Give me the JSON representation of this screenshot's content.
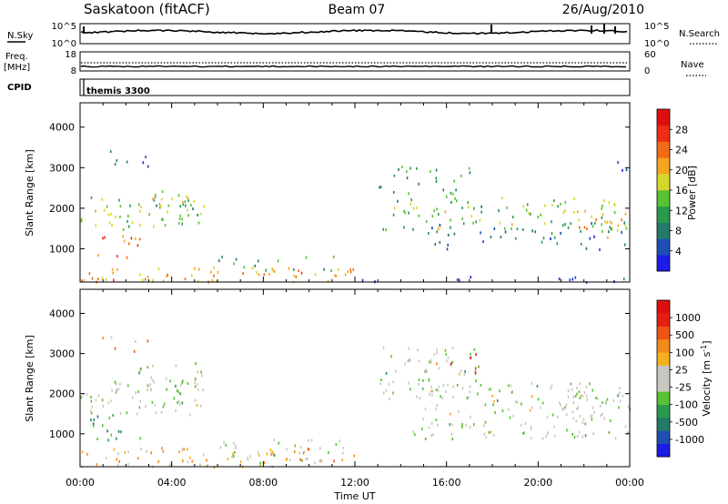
{
  "header": {
    "station": "Saskatoon (fitACF)",
    "beam": "Beam 07",
    "date": "26/Aug/2010"
  },
  "top_panels": {
    "nsky": {
      "left_label": "N.Sky",
      "right_label": "N.Search",
      "left_ticks": [
        "10^5",
        "10^0"
      ],
      "right_ticks": [
        "10^5",
        "10^0"
      ],
      "right_legend_style": "dotted"
    },
    "freq": {
      "left_label_line1": "Freq.",
      "left_label_line2": "[MHz]",
      "right_label": "Nave",
      "left_ticks": [
        "18",
        "8"
      ],
      "right_ticks": [
        "60",
        "0"
      ],
      "right_legend_style": "dotted"
    },
    "cpid": {
      "label": "CPID",
      "program": "themis 3300"
    }
  },
  "colors": {
    "power_scale": [
      "#1c1ce6",
      "#1e4fb4",
      "#237a6a",
      "#2a9a4e",
      "#57c233",
      "#d6d62a",
      "#f5a41e",
      "#f26a16",
      "#ee2d14",
      "#e00f0f"
    ],
    "velocity_scale": [
      "#1c1ce6",
      "#1e4fb4",
      "#237a6a",
      "#2a9a4e",
      "#57c233",
      "#c8c8c0",
      "#c8c8c0",
      "#f5b01e",
      "#f28a18",
      "#ee5514",
      "#e41f10",
      "#e00f0f"
    ]
  },
  "chart_data": [
    {
      "type": "heatmap",
      "quantity": "Power",
      "ylabel": "Slant Range [km]",
      "xlabel": "",
      "ylim": [
        180,
        4600
      ],
      "yticks": [
        1000,
        2000,
        3000,
        4000
      ],
      "xlim_hours": [
        0,
        24
      ],
      "colorbar_label": "Power [dB]",
      "colorbar_ticks": [
        "4",
        "8",
        "12",
        "16",
        "20",
        "24",
        "28"
      ],
      "scatter_regions": [
        {
          "t": [
            0.0,
            5.4
          ],
          "r": [
            1500,
            2350
          ],
          "level": 4,
          "density": 0.55
        },
        {
          "t": [
            2.5,
            5.5
          ],
          "r": [
            2100,
            2450
          ],
          "level": 5,
          "density": 0.5
        },
        {
          "t": [
            0.6,
            3.0
          ],
          "r": [
            3050,
            3450
          ],
          "level": 1,
          "density": 0.35
        },
        {
          "t": [
            0.3,
            2.6
          ],
          "r": [
            800,
            1400
          ],
          "level": 7,
          "density": 0.4
        },
        {
          "t": [
            0.0,
            12.0
          ],
          "r": [
            200,
            600
          ],
          "level": 6,
          "density": 0.55
        },
        {
          "t": [
            6.0,
            11.5
          ],
          "r": [
            400,
            850
          ],
          "level": 3,
          "density": 0.25
        },
        {
          "t": [
            12.0,
            24.0
          ],
          "r": [
            200,
            350
          ],
          "level": 1,
          "density": 0.3
        },
        {
          "t": [
            13.0,
            17.0
          ],
          "r": [
            2300,
            3100
          ],
          "level": 3,
          "density": 0.35
        },
        {
          "t": [
            13.2,
            24.0
          ],
          "r": [
            1500,
            2300
          ],
          "level": 4,
          "density": 0.45
        },
        {
          "t": [
            15.0,
            24.0
          ],
          "r": [
            1000,
            1700
          ],
          "level": 2,
          "density": 0.3
        },
        {
          "t": [
            21.5,
            24.0
          ],
          "r": [
            1300,
            2000
          ],
          "level": 6,
          "density": 0.45
        },
        {
          "t": [
            22.8,
            24.0
          ],
          "r": [
            2800,
            3200
          ],
          "level": 1,
          "density": 0.25
        }
      ]
    },
    {
      "type": "heatmap",
      "quantity": "Velocity",
      "ylabel": "Slant Range [km]",
      "xlabel": "Time UT",
      "ylim": [
        180,
        4600
      ],
      "yticks": [
        1000,
        2000,
        3000,
        4000
      ],
      "xlim_hours": [
        0,
        24
      ],
      "xtick_labels": [
        "00:00",
        "04:00",
        "08:00",
        "12:00",
        "16:00",
        "20:00",
        "00:00"
      ],
      "colorbar_label": "Velocity [m s-1]",
      "colorbar_ticks": [
        "-1000",
        "-500",
        "-100",
        "-25",
        "25",
        "100",
        "500",
        "1000"
      ],
      "scatter_regions": [
        {
          "t": [
            0.0,
            5.4
          ],
          "r": [
            1500,
            2350
          ],
          "level": 5,
          "density": 0.6
        },
        {
          "t": [
            2.5,
            5.5
          ],
          "r": [
            2100,
            2800
          ],
          "level": 5,
          "density": 0.55
        },
        {
          "t": [
            0.6,
            3.0
          ],
          "r": [
            3050,
            3450
          ],
          "level": 7,
          "density": 0.3
        },
        {
          "t": [
            0.3,
            2.6
          ],
          "r": [
            800,
            1500
          ],
          "level": 3,
          "density": 0.45
        },
        {
          "t": [
            0.0,
            12.0
          ],
          "r": [
            200,
            700
          ],
          "level": 7,
          "density": 0.55
        },
        {
          "t": [
            6.0,
            11.5
          ],
          "r": [
            300,
            900
          ],
          "level": 5,
          "density": 0.35
        },
        {
          "t": [
            13.0,
            17.5
          ],
          "r": [
            1900,
            3200
          ],
          "level": 5,
          "density": 0.5
        },
        {
          "t": [
            15.5,
            17.5
          ],
          "r": [
            2500,
            3050
          ],
          "level": 9,
          "density": 0.3
        },
        {
          "t": [
            14.5,
            24.0
          ],
          "r": [
            900,
            2300
          ],
          "level": 5,
          "density": 0.5
        },
        {
          "t": [
            21.5,
            24.0
          ],
          "r": [
            1300,
            2000
          ],
          "level": 5,
          "density": 0.45
        }
      ]
    }
  ]
}
